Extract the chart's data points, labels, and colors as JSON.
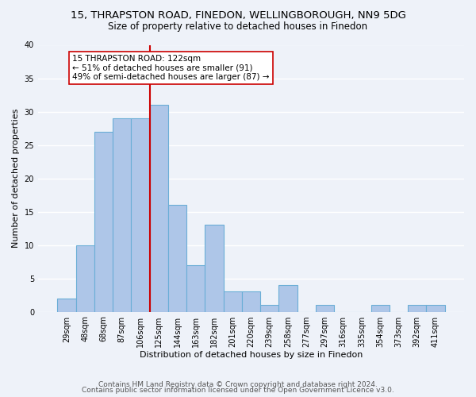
{
  "title": "15, THRAPSTON ROAD, FINEDON, WELLINGBOROUGH, NN9 5DG",
  "subtitle": "Size of property relative to detached houses in Finedon",
  "xlabel": "Distribution of detached houses by size in Finedon",
  "ylabel": "Number of detached properties",
  "bar_labels": [
    "29sqm",
    "48sqm",
    "68sqm",
    "87sqm",
    "106sqm",
    "125sqm",
    "144sqm",
    "163sqm",
    "182sqm",
    "201sqm",
    "220sqm",
    "239sqm",
    "258sqm",
    "277sqm",
    "297sqm",
    "316sqm",
    "335sqm",
    "354sqm",
    "373sqm",
    "392sqm",
    "411sqm"
  ],
  "bar_values": [
    2,
    10,
    27,
    29,
    29,
    31,
    16,
    7,
    13,
    3,
    3,
    1,
    4,
    0,
    1,
    0,
    0,
    1,
    0,
    1,
    1
  ],
  "bar_color": "#aec6e8",
  "bar_edge_color": "#6aaed6",
  "vline_color": "#cc0000",
  "annotation_text": "15 THRAPSTON ROAD: 122sqm\n← 51% of detached houses are smaller (91)\n49% of semi-detached houses are larger (87) →",
  "annotation_box_color": "#ffffff",
  "annotation_box_edge_color": "#cc0000",
  "ylim": [
    0,
    40
  ],
  "yticks": [
    0,
    5,
    10,
    15,
    20,
    25,
    30,
    35,
    40
  ],
  "footer_line1": "Contains HM Land Registry data © Crown copyright and database right 2024.",
  "footer_line2": "Contains public sector information licensed under the Open Government Licence v3.0.",
  "background_color": "#eef2f9",
  "grid_color": "#ffffff",
  "title_fontsize": 9.5,
  "subtitle_fontsize": 8.5,
  "annotation_fontsize": 7.5,
  "footer_fontsize": 6.5,
  "xlabel_fontsize": 8,
  "ylabel_fontsize": 8,
  "tick_fontsize": 7
}
